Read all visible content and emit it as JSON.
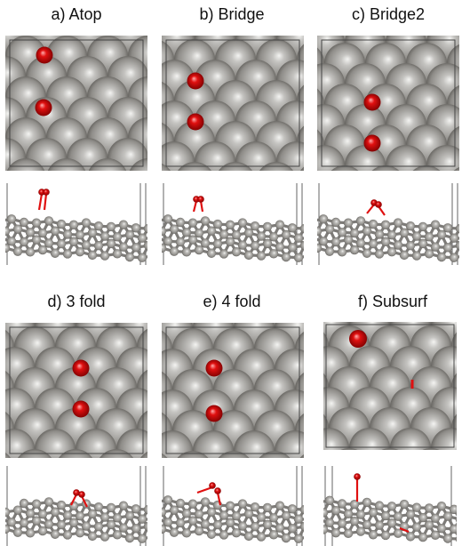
{
  "figure": {
    "panels": [
      {
        "label": "a) Atop"
      },
      {
        "label": "b) Bridge"
      },
      {
        "label": "c) Bridge2"
      },
      {
        "label": "d) 3 fold"
      },
      {
        "label": "e) 4 fold"
      },
      {
        "label": "f) Subsurf"
      }
    ]
  },
  "colors": {
    "metal_atom": "#8e8c88",
    "metal_atom_highlight": "#f4f4f2",
    "metal_atom_shadow": "#565450",
    "oxygen_atom": "#e01010",
    "oxygen_atom_highlight": "#ffb0b0",
    "cell_outline": "#444444",
    "background": "#ffffff"
  }
}
